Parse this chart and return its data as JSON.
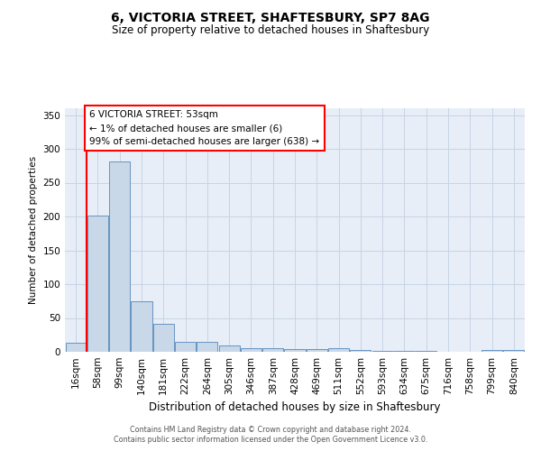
{
  "title": "6, VICTORIA STREET, SHAFTESBURY, SP7 8AG",
  "subtitle": "Size of property relative to detached houses in Shaftesbury",
  "xlabel": "Distribution of detached houses by size in Shaftesbury",
  "ylabel": "Number of detached properties",
  "bar_color": "#c8d8e8",
  "bar_edge_color": "#5588bb",
  "grid_color": "#c8d4e4",
  "background_color": "#e8eef8",
  "annotation_text": "6 VICTORIA STREET: 53sqm\n← 1% of detached houses are smaller (6)\n99% of semi-detached houses are larger (638) →",
  "categories": [
    "16sqm",
    "58sqm",
    "99sqm",
    "140sqm",
    "181sqm",
    "222sqm",
    "264sqm",
    "305sqm",
    "346sqm",
    "387sqm",
    "428sqm",
    "469sqm",
    "511sqm",
    "552sqm",
    "593sqm",
    "634sqm",
    "675sqm",
    "716sqm",
    "758sqm",
    "799sqm",
    "840sqm"
  ],
  "values": [
    13,
    201,
    281,
    75,
    41,
    15,
    15,
    10,
    6,
    6,
    4,
    4,
    6,
    3,
    2,
    1,
    1,
    0,
    0,
    3,
    3
  ],
  "ylim": [
    0,
    360
  ],
  "yticks": [
    0,
    50,
    100,
    150,
    200,
    250,
    300,
    350
  ],
  "footer_line1": "Contains HM Land Registry data © Crown copyright and database right 2024.",
  "footer_line2": "Contains public sector information licensed under the Open Government Licence v3.0.",
  "red_line_idx": 0.5
}
